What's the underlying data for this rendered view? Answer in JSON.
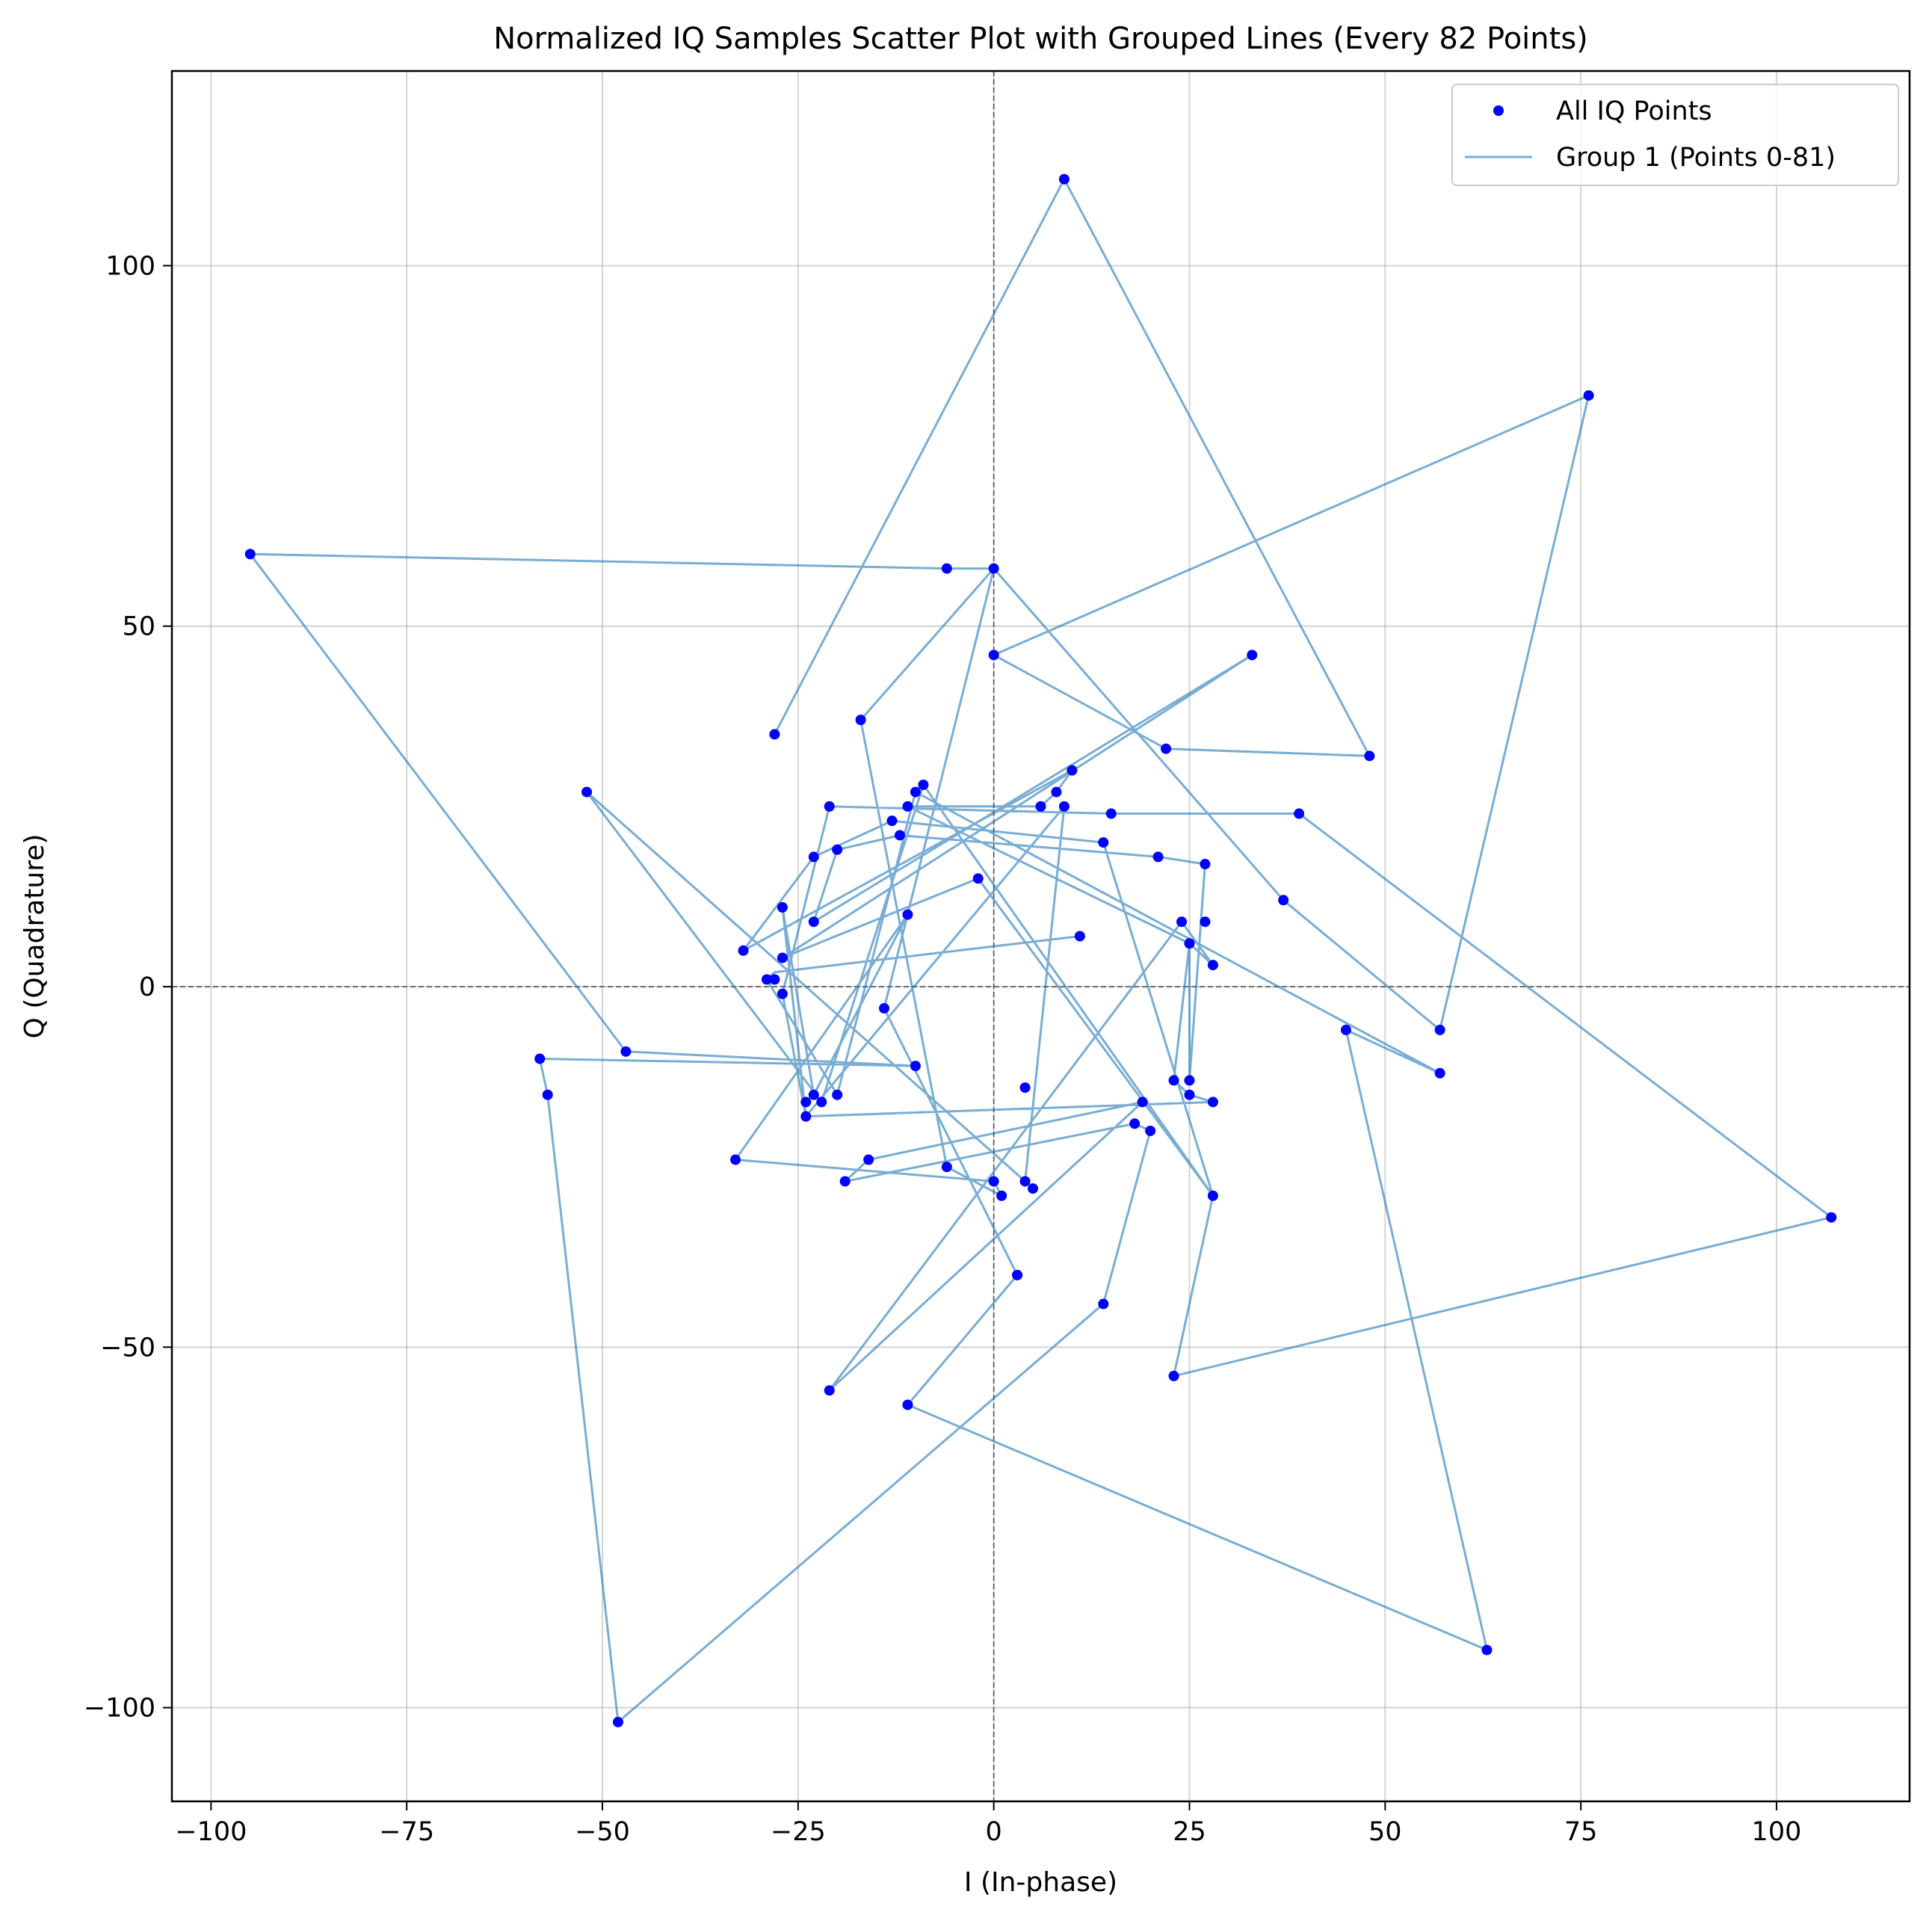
{
  "chart_data": {
    "type": "scatter",
    "title": "Normalized IQ Samples Scatter Plot with Grouped Lines (Every 82 Points)",
    "xlabel": "I (In-phase)",
    "ylabel": "Q (Quadrature)",
    "xlim": [
      -105,
      117
    ],
    "ylim": [
      -113,
      127
    ],
    "xticks": [
      -100,
      -75,
      -50,
      -25,
      0,
      25,
      50,
      75,
      100
    ],
    "yticks": [
      -100,
      -50,
      0,
      50,
      100
    ],
    "xtick_labels": [
      "−100",
      "−75",
      "−50",
      "−25",
      "0",
      "25",
      "50",
      "75",
      "100"
    ],
    "ytick_labels": [
      "−100",
      "−50",
      "0",
      "50",
      "100"
    ],
    "grid": true,
    "zero_lines": true,
    "legend_position": "top-right",
    "series": [
      {
        "name": "All IQ Points",
        "kind": "scatter",
        "color": "#0000ff",
        "points": [
          [
            9,
            112
          ],
          [
            48,
            32
          ],
          [
            0,
            46
          ],
          [
            76,
            82
          ],
          [
            57,
            -6
          ],
          [
            45,
            -6
          ],
          [
            63,
            -92
          ],
          [
            -11,
            -58
          ],
          [
            3,
            -40
          ],
          [
            -6,
            58
          ],
          [
            -95,
            60
          ],
          [
            -47,
            -9
          ],
          [
            -58,
            -10
          ],
          [
            -10,
            -11
          ],
          [
            -57,
            -15
          ],
          [
            -33,
            -24
          ],
          [
            37,
            12
          ],
          [
            57,
            -12
          ],
          [
            -52,
            27
          ],
          [
            -22,
            -16
          ],
          [
            -20,
            -15
          ],
          [
            -21,
            25
          ],
          [
            15,
            24
          ],
          [
            39,
            24
          ],
          [
            107,
            -32
          ],
          [
            23,
            -54
          ],
          [
            28,
            -29
          ],
          [
            -14,
            -3
          ],
          [
            3,
            -40
          ],
          [
            0,
            -27
          ],
          [
            -28,
            1
          ],
          [
            -29,
            1
          ],
          [
            -27,
            11
          ],
          [
            -24,
            -16
          ],
          [
            -23,
            -15
          ],
          [
            -21,
            -56
          ],
          [
            24,
            9
          ],
          [
            27,
            9
          ],
          [
            28,
            3
          ],
          [
            25,
            6
          ],
          [
            25,
            -13
          ],
          [
            23,
            -13
          ],
          [
            25,
            -15
          ],
          [
            28,
            -16
          ],
          [
            -16,
            -24
          ],
          [
            -24,
            -18
          ],
          [
            -27,
            -1
          ],
          [
            -27,
            4
          ],
          [
            -32,
            5
          ],
          [
            -23,
            18
          ],
          [
            -13,
            23
          ],
          [
            -11,
            25
          ],
          [
            -9,
            28
          ],
          [
            -10,
            27
          ],
          [
            -12,
            21
          ],
          [
            -20,
            19
          ],
          [
            -23,
            9
          ],
          [
            -2,
            15
          ],
          [
            8,
            27
          ],
          [
            10,
            30
          ],
          [
            14,
            20
          ],
          [
            21,
            18
          ],
          [
            27,
            17
          ],
          [
            22,
            33
          ],
          [
            18,
            -19
          ],
          [
            19,
            -16
          ],
          [
            20,
            -20
          ],
          [
            14,
            -44
          ],
          [
            -48,
            -102
          ],
          [
            -28,
            35
          ],
          [
            0,
            58
          ],
          [
            -17,
            37
          ],
          [
            6,
            25
          ],
          [
            9,
            25
          ],
          [
            11,
            7
          ],
          [
            -11,
            10
          ],
          [
            -19,
            -27
          ],
          [
            4,
            -14
          ],
          [
            5,
            -28
          ],
          [
            4,
            -27
          ],
          [
            1,
            -29
          ],
          [
            -6,
            -25
          ],
          [
            33,
            46
          ]
        ]
      },
      {
        "name": "Group 1 (Points 0-81)",
        "kind": "line",
        "color": "#1f77b4",
        "points": [
          [
            -28,
            35
          ],
          [
            9,
            112
          ],
          [
            48,
            32
          ],
          [
            22,
            33
          ],
          [
            0,
            46
          ],
          [
            76,
            82
          ],
          [
            57,
            -6
          ],
          [
            37,
            12
          ],
          [
            0,
            58
          ],
          [
            -6,
            58
          ],
          [
            -95,
            60
          ],
          [
            -47,
            -9
          ],
          [
            -10,
            -11
          ],
          [
            -58,
            -10
          ],
          [
            -57,
            -15
          ],
          [
            -48,
            -102
          ],
          [
            14,
            -44
          ],
          [
            20,
            -20
          ],
          [
            18,
            -19
          ],
          [
            -19,
            -27
          ],
          [
            -16,
            -24
          ],
          [
            19,
            -16
          ],
          [
            -21,
            -56
          ],
          [
            24,
            9
          ],
          [
            28,
            3
          ],
          [
            25,
            6
          ],
          [
            23,
            -13
          ],
          [
            25,
            -15
          ],
          [
            28,
            -16
          ],
          [
            -24,
            -18
          ],
          [
            -27,
            -1
          ],
          [
            -21,
            25
          ],
          [
            15,
            24
          ],
          [
            39,
            24
          ],
          [
            107,
            -32
          ],
          [
            23,
            -54
          ],
          [
            28,
            -29
          ],
          [
            -2,
            15
          ],
          [
            -27,
            4
          ],
          [
            33,
            46
          ],
          [
            -23,
            9
          ],
          [
            -20,
            19
          ],
          [
            -12,
            21
          ],
          [
            21,
            18
          ],
          [
            27,
            17
          ],
          [
            25,
            -13
          ],
          [
            25,
            6
          ],
          [
            -11,
            25
          ],
          [
            6,
            25
          ],
          [
            8,
            27
          ],
          [
            10,
            30
          ],
          [
            -32,
            5
          ],
          [
            -23,
            18
          ],
          [
            -13,
            23
          ],
          [
            14,
            20
          ],
          [
            28,
            -29
          ],
          [
            -9,
            28
          ],
          [
            -22,
            -16
          ],
          [
            -52,
            27
          ],
          [
            4,
            -27
          ],
          [
            9,
            25
          ],
          [
            -24,
            -18
          ],
          [
            -27,
            11
          ],
          [
            -23,
            -15
          ],
          [
            -11,
            10
          ],
          [
            -33,
            -24
          ],
          [
            0,
            -27
          ],
          [
            1,
            -29
          ],
          [
            -6,
            -25
          ],
          [
            -17,
            37
          ],
          [
            0,
            58
          ],
          [
            -14,
            -3
          ],
          [
            3,
            -40
          ],
          [
            -11,
            -58
          ],
          [
            63,
            -92
          ],
          [
            45,
            -6
          ],
          [
            57,
            -12
          ],
          [
            -10,
            27
          ],
          [
            -20,
            -15
          ],
          [
            -29,
            1
          ],
          [
            -28,
            2
          ],
          [
            11,
            7
          ]
        ]
      }
    ]
  }
}
